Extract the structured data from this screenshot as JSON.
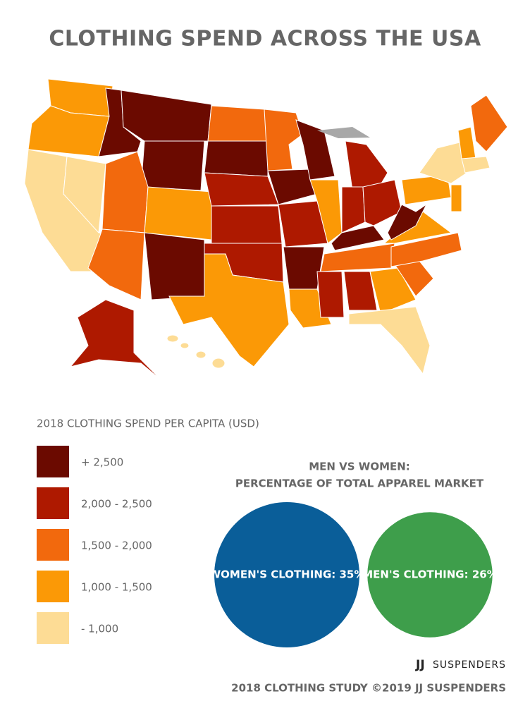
{
  "title": "CLOTHING SPEND ACROSS THE USA",
  "legend": {
    "title": "2018 CLOTHING SPEND PER CAPITA (USD)",
    "items": [
      {
        "label": "+ 2,500",
        "color": "#6b0a00"
      },
      {
        "label": "2,000 - 2,500",
        "color": "#ae1900"
      },
      {
        "label": "1,500 - 2,000",
        "color": "#f2690d"
      },
      {
        "label": "1,000 - 1,500",
        "color": "#fb9906"
      },
      {
        "label": "- 1,000",
        "color": "#fddc95"
      }
    ]
  },
  "comparison": {
    "title_lines": [
      "MEN VS WOMEN:",
      "PERCENTAGE OF TOTAL APPAREL MARKET"
    ],
    "circles": [
      {
        "label": "WOMEN'S CLOTHING: 35%",
        "value": 35,
        "color": "#0a5e99"
      },
      {
        "label": "MEN'S CLOTHING: 26%",
        "value": 26,
        "color": "#3e9e4b"
      }
    ]
  },
  "footer": {
    "brand_mark": "JJ",
    "brand": "SUSPENDERS",
    "credit": "2018 CLOTHING STUDY ©2019 JJ SUSPENDERS"
  }
}
